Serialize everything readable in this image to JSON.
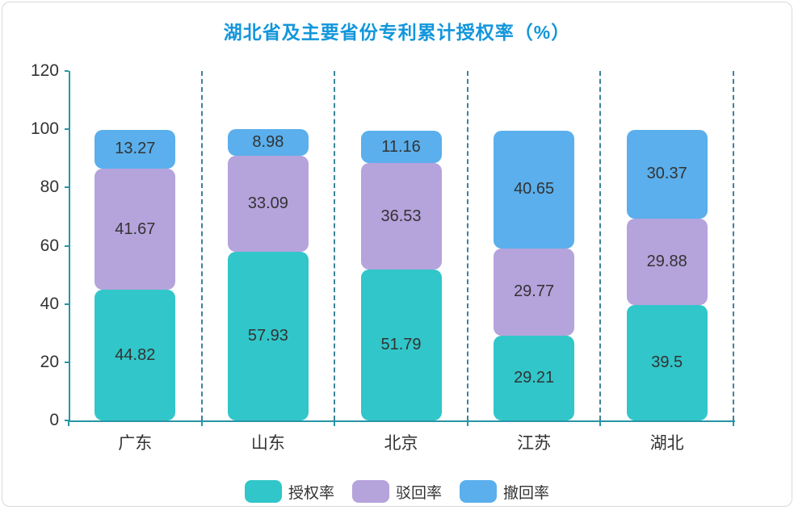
{
  "title": "湖北省及主要省份专利累计授权率（%）",
  "chart_data": {
    "type": "bar",
    "stacked": true,
    "title": "湖北省及主要省份专利累计授权率（%）",
    "categories": [
      "广东",
      "山东",
      "北京",
      "江苏",
      "湖北"
    ],
    "series": [
      {
        "name": "授权率",
        "color": "#31c6c9",
        "values": [
          44.82,
          57.93,
          51.79,
          29.21,
          39.5
        ]
      },
      {
        "name": "驳回率",
        "color": "#b5a3dc",
        "values": [
          41.67,
          33.09,
          36.53,
          29.77,
          29.88
        ]
      },
      {
        "name": "撤回率",
        "color": "#5aafec",
        "values": [
          13.27,
          8.98,
          11.16,
          40.65,
          30.37
        ]
      }
    ],
    "xlabel": "",
    "ylabel": "",
    "ylim": [
      0,
      120
    ],
    "yticks": [
      0,
      20,
      40,
      60,
      80,
      100,
      120
    ],
    "grid": "vertical-dashed",
    "legend_position": "bottom"
  },
  "colors": {
    "title": "#1296db",
    "axis": "#2795a5",
    "grid_dash": "#3d8399",
    "label_text": "#333333",
    "card_border": "#d9d9d9"
  }
}
